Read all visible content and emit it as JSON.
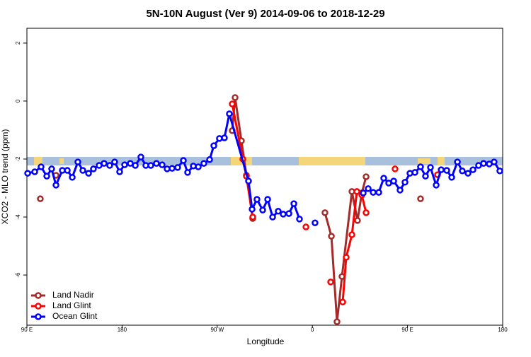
{
  "chart_data": {
    "type": "line",
    "title": "5N-10N August (Ver 9)   2014-09-06 to 2018-12-29",
    "x_label": "Longitude",
    "y_label": "XCO2 - MLO trend (ppm)",
    "xlim": [
      90,
      540
    ],
    "ylim": [
      -7.73,
      2.51
    ],
    "xticks": [
      {
        "value": 90,
        "label": "90 E"
      },
      {
        "value": 180,
        "label": "180"
      },
      {
        "value": 270,
        "label": "90 W"
      },
      {
        "value": 360,
        "label": "0"
      },
      {
        "value": 450,
        "label": "90 E"
      },
      {
        "value": 540,
        "label": "180"
      }
    ],
    "yticks": [
      2,
      0,
      -2,
      -4,
      -6
    ],
    "legend": "bottom-left",
    "series": [
      {
        "name": "Land Nadir",
        "color": "#a52a2a",
        "x": [
          102.7,
          null,
          117.5,
          null,
          284.2,
          286.9,
          292.9,
          297.6,
          303.6,
          null,
          371.9,
          378.0,
          383.3,
          388.0,
          397.4,
          402.7,
          406.8,
          410.8,
          null,
          462.3
        ],
        "values": [
          -3.37,
          null,
          -2.56,
          null,
          -1.02,
          0.12,
          -1.37,
          -2.56,
          -4.05,
          null,
          -3.85,
          -4.66,
          -7.61,
          -6.05,
          -3.12,
          -4.12,
          -3.17,
          -2.61,
          null,
          -3.37
        ]
      },
      {
        "name": "Land Glint",
        "color": "#ff0000",
        "x": [
          284.2,
          294.2,
          297.6,
          303.6,
          null,
          353.9,
          null,
          377.3,
          null,
          388.7,
          392.0,
          397.4,
          402.1,
          406.8,
          410.8,
          null,
          438.2,
          null,
          478.4
        ],
        "values": [
          -0.1,
          -2.0,
          -2.59,
          -4.0,
          null,
          -4.34,
          null,
          -6.24,
          null,
          -6.93,
          -5.39,
          -4.61,
          -3.12,
          -3.24,
          -3.85,
          null,
          -2.34,
          null,
          -2.54
        ]
      },
      {
        "name": "Ocean Glint",
        "color": "#0000ff",
        "x": [
          90.7,
          97.4,
          103.4,
          108.8,
          113.4,
          117.5,
          123.5,
          128.2,
          132.9,
          138.2,
          142.9,
          148.3,
          152.9,
          158.3,
          163.0,
          168.3,
          173.0,
          177.7,
          182.4,
          187.8,
          192.5,
          197.8,
          202.5,
          207.2,
          212.5,
          217.9,
          222.6,
          227.3,
          232.6,
          238.0,
          242.0,
          247.4,
          252.1,
          257.4,
          262.8,
          266.8,
          272.1,
          276.8,
          281.5,
          299.6,
          303.0,
          307.6,
          313.0,
          317.7,
          322.4,
          327.7,
          332.4,
          337.8,
          342.5,
          347.8,
          null,
          362.5,
          null,
          408.1,
          412.8,
          417.5,
          422.8,
          427.5,
          432.2,
          436.9,
          442.9,
          447.6,
          452.3,
          457.0,
          462.3,
          467.0,
          471.7,
          477.1,
          481.8,
          487.1,
          491.8,
          497.2,
          501.8,
          507.2,
          511.9,
          517.2,
          521.9,
          527.3,
          531.9,
          537.3
        ],
        "values": [
          -2.49,
          -2.44,
          -2.27,
          -2.59,
          -2.34,
          -2.9,
          -2.39,
          -2.39,
          -2.63,
          -2.1,
          -2.39,
          -2.49,
          -2.34,
          -2.22,
          -2.15,
          -2.22,
          -2.1,
          -2.44,
          -2.2,
          -2.15,
          -2.22,
          -1.93,
          -2.22,
          -2.22,
          -2.15,
          -2.2,
          -2.34,
          -2.32,
          -2.29,
          -2.05,
          -2.46,
          -2.24,
          -2.27,
          -2.15,
          -2.02,
          -1.54,
          -1.29,
          -1.27,
          -0.44,
          -2.76,
          -3.73,
          -3.39,
          -3.76,
          -3.39,
          -4.0,
          -3.8,
          -3.9,
          -3.88,
          -3.54,
          -4.07,
          null,
          -4.2,
          null,
          -3.17,
          -3.02,
          -3.15,
          -3.15,
          -2.66,
          -2.83,
          -2.76,
          -3.07,
          -2.8,
          -2.49,
          -2.46,
          -2.27,
          -2.59,
          -2.29,
          -2.9,
          -2.37,
          -2.39,
          -2.63,
          -2.1,
          -2.41,
          -2.49,
          -2.37,
          -2.22,
          -2.15,
          -2.17,
          -2.1,
          -2.41
        ]
      }
    ]
  }
}
